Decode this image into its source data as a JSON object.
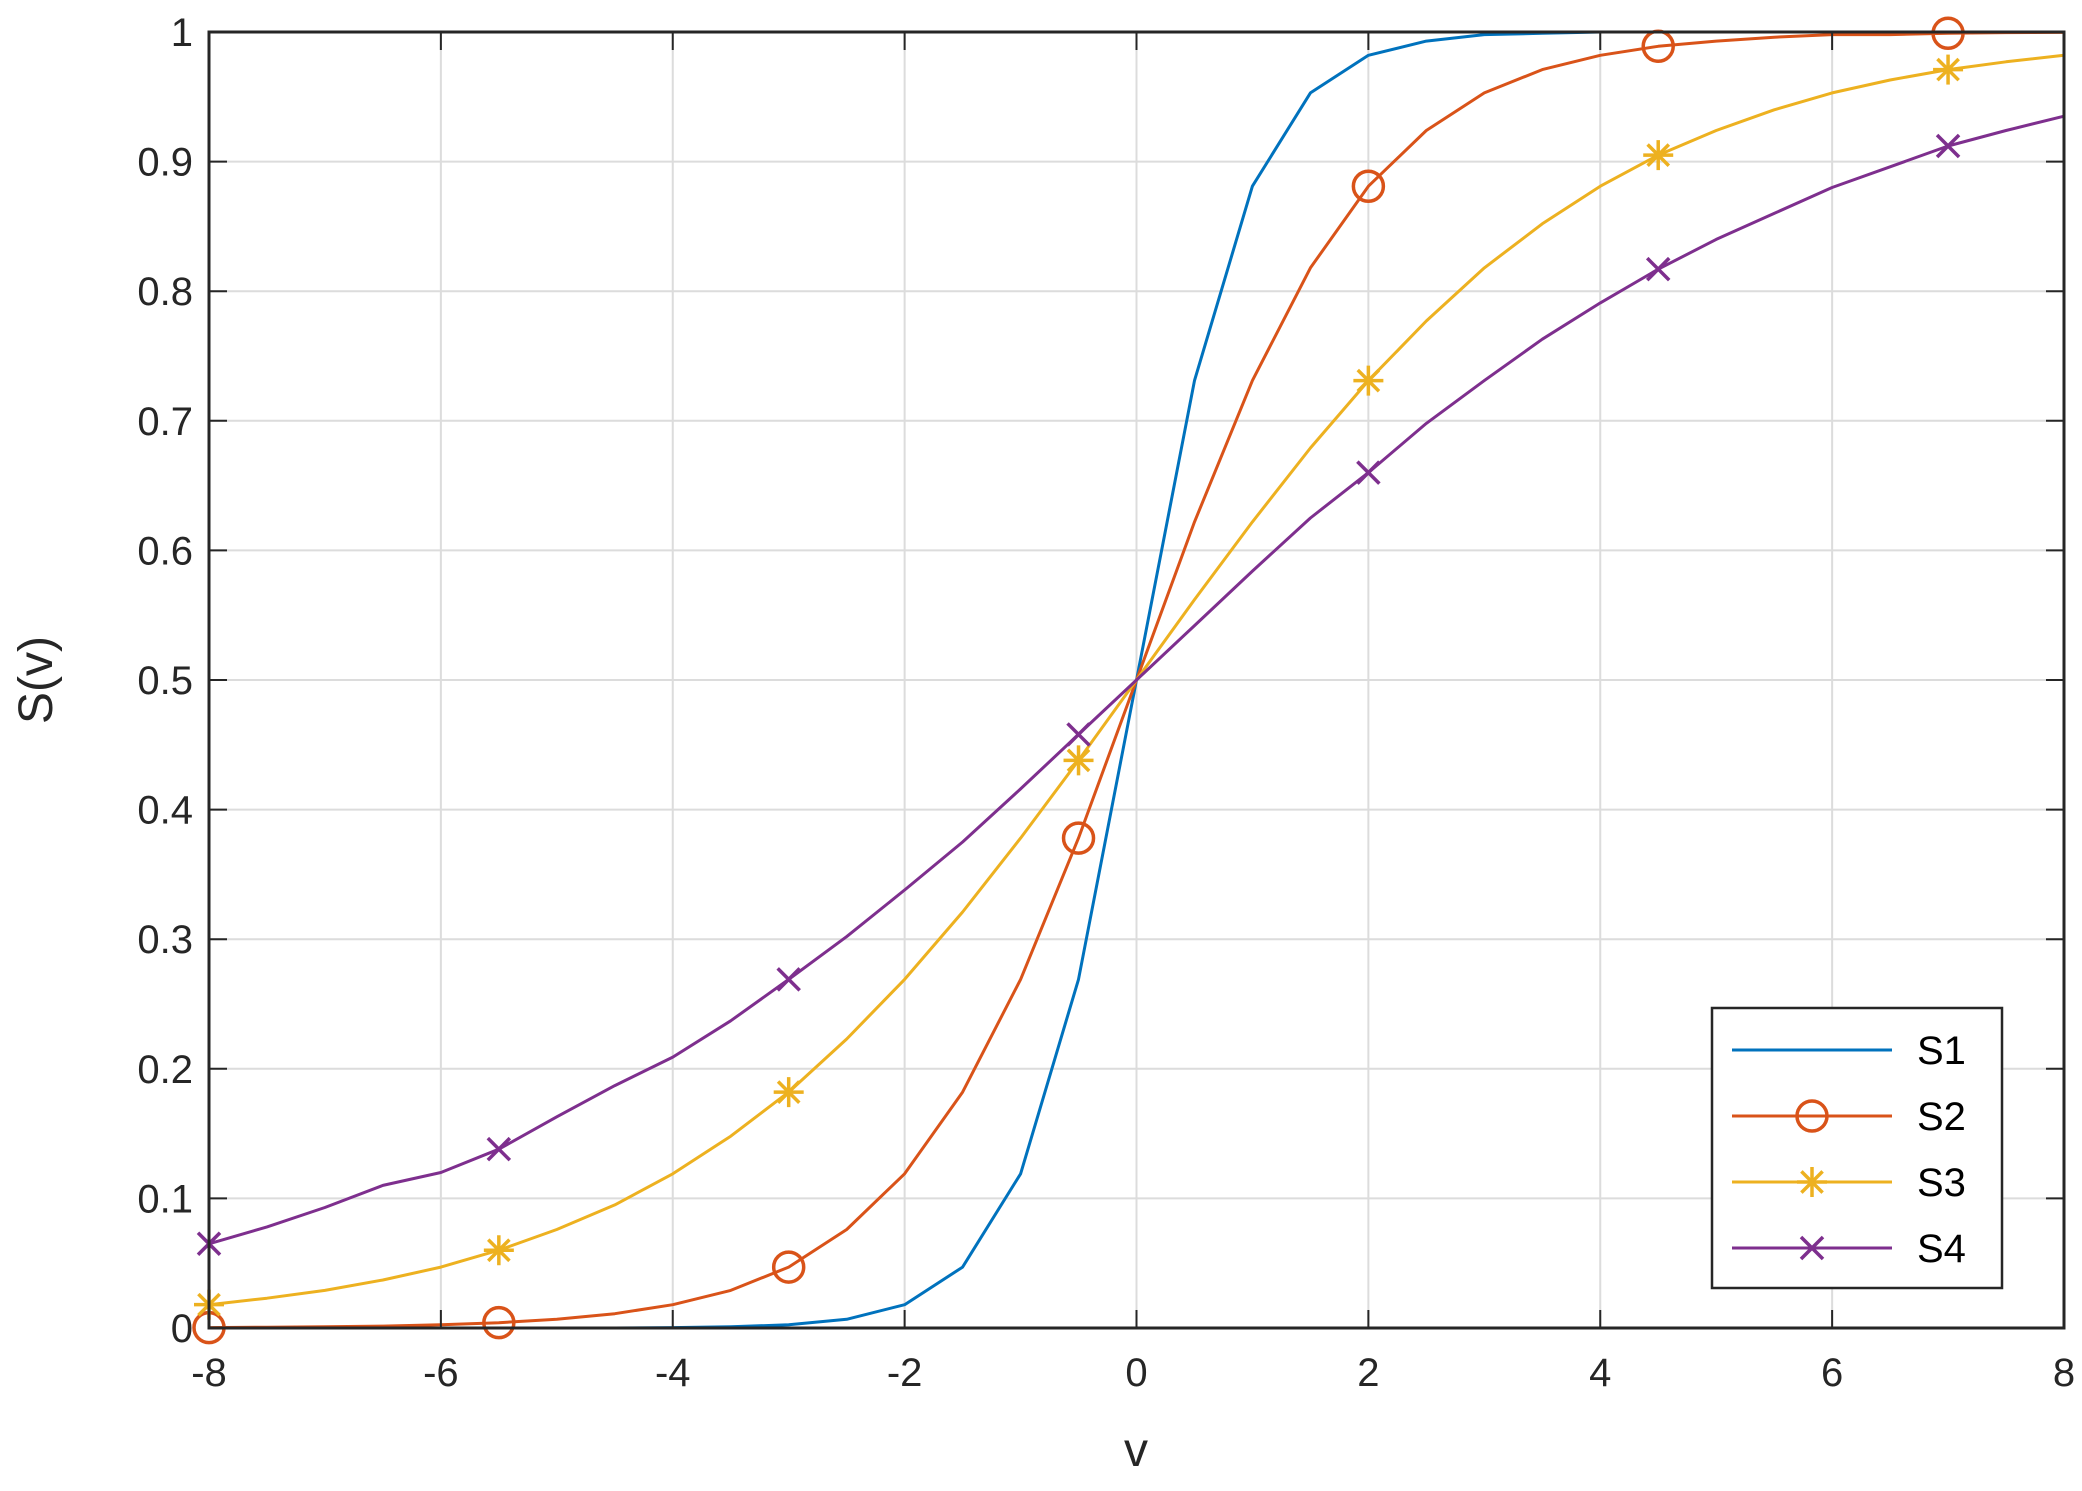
{
  "chart_data": {
    "type": "line",
    "title": "",
    "xlabel": "v",
    "ylabel": "S(v)",
    "xlim": [
      -8,
      8
    ],
    "ylim": [
      0,
      1
    ],
    "xticks": [
      "-8",
      "-6",
      "-4",
      "-2",
      "0",
      "2",
      "4",
      "6",
      "8"
    ],
    "yticks": [
      "0",
      "0.1",
      "0.2",
      "0.3",
      "0.4",
      "0.5",
      "0.6",
      "0.7",
      "0.8",
      "0.9",
      "1"
    ],
    "grid": true,
    "legend_position": "bottom-right",
    "x": [
      -8,
      -7.5,
      -7,
      -6.5,
      -6,
      -5.5,
      -5,
      -4.5,
      -4,
      -3.5,
      -3,
      -2.5,
      -2,
      -1.5,
      -1,
      -0.5,
      0,
      0.5,
      1,
      1.5,
      2,
      2.5,
      3,
      3.5,
      4,
      4.5,
      5,
      5.5,
      6,
      6.5,
      7,
      7.5,
      8
    ],
    "series": [
      {
        "name": "S1",
        "color": "#0072BD",
        "marker": "none",
        "values": [
          0.0,
          0.0,
          0.0,
          0.0,
          0.0,
          0.0,
          0.0,
          0.0,
          0.0003,
          0.0009,
          0.0025,
          0.0067,
          0.018,
          0.047,
          0.119,
          0.269,
          0.5,
          0.731,
          0.881,
          0.953,
          0.982,
          0.993,
          0.998,
          0.999,
          1.0,
          1.0,
          1.0,
          1.0,
          1.0,
          1.0,
          1.0,
          1.0,
          1.0
        ]
      },
      {
        "name": "S2",
        "color": "#D95319",
        "marker": "circle",
        "marker_x": [
          -8,
          -5.5,
          -3,
          -0.5,
          2,
          4.5,
          7
        ],
        "values": [
          0.0003,
          0.0006,
          0.0009,
          0.0015,
          0.0025,
          0.0041,
          0.0067,
          0.011,
          0.018,
          0.029,
          0.047,
          0.076,
          0.119,
          0.182,
          0.269,
          0.378,
          0.5,
          0.622,
          0.731,
          0.818,
          0.881,
          0.924,
          0.953,
          0.971,
          0.982,
          0.989,
          0.993,
          0.996,
          0.998,
          0.998,
          0.999,
          0.9995,
          0.9997
        ]
      },
      {
        "name": "S3",
        "color": "#EDB120",
        "marker": "asterisk",
        "marker_x": [
          -8,
          -5.5,
          -3,
          -0.5,
          2,
          4.5,
          7
        ],
        "values": [
          0.018,
          0.023,
          0.029,
          0.037,
          0.047,
          0.06,
          0.076,
          0.095,
          0.119,
          0.148,
          0.182,
          0.223,
          0.269,
          0.321,
          0.378,
          0.438,
          0.5,
          0.562,
          0.622,
          0.679,
          0.731,
          0.777,
          0.818,
          0.852,
          0.881,
          0.905,
          0.924,
          0.94,
          0.953,
          0.963,
          0.971,
          0.977,
          0.982
        ]
      },
      {
        "name": "S4",
        "color": "#7E2F8E",
        "marker": "x",
        "marker_x": [
          -8,
          -5.5,
          -3,
          -0.5,
          2,
          4.5,
          7
        ],
        "values": [
          0.065,
          0.078,
          0.093,
          0.11,
          0.12,
          0.138,
          0.163,
          0.187,
          0.209,
          0.237,
          0.269,
          0.302,
          0.338,
          0.375,
          0.416,
          0.458,
          0.5,
          0.542,
          0.584,
          0.625,
          0.66,
          0.698,
          0.731,
          0.763,
          0.791,
          0.817,
          0.84,
          0.86,
          0.88,
          0.896,
          0.912,
          0.924,
          0.935
        ]
      }
    ]
  }
}
